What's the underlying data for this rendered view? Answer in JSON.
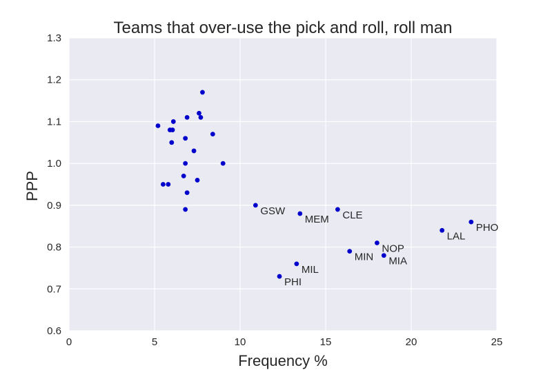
{
  "chart_data": {
    "type": "scatter",
    "title": "Teams that over-use the pick and roll, roll man",
    "xlabel": "Frequency %",
    "ylabel": "PPP",
    "xlim": [
      0,
      25
    ],
    "ylim": [
      0.6,
      1.3
    ],
    "xticks": [
      "0",
      "5",
      "10",
      "15",
      "20",
      "25"
    ],
    "yticks": [
      "0.6",
      "0.7",
      "0.8",
      "0.9",
      "1.0",
      "1.1",
      "1.2",
      "1.3"
    ],
    "grid": true,
    "point_color": "#0000cc",
    "background_color": "#eaeaf2",
    "points": [
      {
        "x": 5.2,
        "y": 1.09
      },
      {
        "x": 5.9,
        "y": 1.08
      },
      {
        "x": 6.05,
        "y": 1.08
      },
      {
        "x": 6.1,
        "y": 1.1
      },
      {
        "x": 6.0,
        "y": 1.05
      },
      {
        "x": 6.8,
        "y": 1.06
      },
      {
        "x": 6.9,
        "y": 1.11
      },
      {
        "x": 7.6,
        "y": 1.12
      },
      {
        "x": 7.7,
        "y": 1.11
      },
      {
        "x": 7.8,
        "y": 1.17
      },
      {
        "x": 7.3,
        "y": 1.03
      },
      {
        "x": 8.4,
        "y": 1.07
      },
      {
        "x": 6.8,
        "y": 1.0
      },
      {
        "x": 9.0,
        "y": 1.0
      },
      {
        "x": 6.7,
        "y": 0.97
      },
      {
        "x": 7.5,
        "y": 0.96
      },
      {
        "x": 5.5,
        "y": 0.95
      },
      {
        "x": 5.8,
        "y": 0.95
      },
      {
        "x": 6.9,
        "y": 0.93
      },
      {
        "x": 6.8,
        "y": 0.89
      },
      {
        "x": 10.9,
        "y": 0.9,
        "label": "GSW"
      },
      {
        "x": 13.5,
        "y": 0.88,
        "label": "MEM"
      },
      {
        "x": 15.7,
        "y": 0.89,
        "label": "CLE"
      },
      {
        "x": 23.5,
        "y": 0.86,
        "label": "PHO"
      },
      {
        "x": 21.8,
        "y": 0.84,
        "label": "LAL"
      },
      {
        "x": 18.0,
        "y": 0.81,
        "label": "NOP"
      },
      {
        "x": 16.4,
        "y": 0.79,
        "label": "MIN"
      },
      {
        "x": 18.4,
        "y": 0.78,
        "label": "MIA"
      },
      {
        "x": 13.3,
        "y": 0.76,
        "label": "MIL"
      },
      {
        "x": 12.3,
        "y": 0.73,
        "label": "PHI"
      }
    ]
  }
}
